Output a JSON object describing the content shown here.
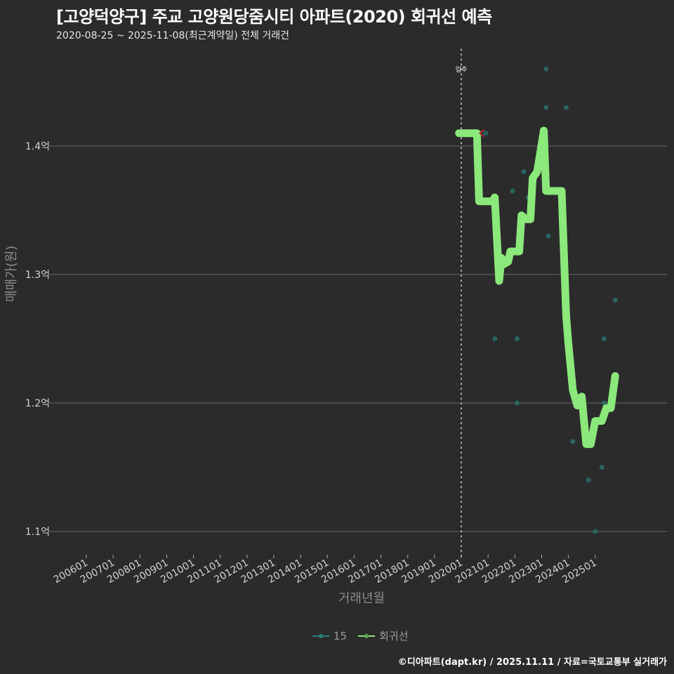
{
  "header": {
    "title": "[고양덕양구] 주교 고양원당줌시티 아파트(2020) 회귀선 예측",
    "subtitle": "2020-08-25 ~ 2025-11-08(최근계약일) 전체 거래건"
  },
  "axes": {
    "ylabel": "매매가(원)",
    "xlabel": "거래년월"
  },
  "legend": {
    "items": [
      {
        "label": "15",
        "color": "#2a7f77"
      },
      {
        "label": "회귀선",
        "color": "#8be87a"
      }
    ]
  },
  "caption": "©디아파트(dapt.kr) / 2025.11.11 / 자료=국토교통부 실거래가",
  "colors": {
    "background": "#2b2b2c",
    "grid": "#6a6a6a",
    "regression": "#8be87a",
    "scatter": "#2a6e68",
    "marker_x": "#b03030",
    "vline": "#cfcfcf"
  },
  "chart_data": {
    "type": "line",
    "title": "[고양덕양구] 주교 고양원당줌시티 아파트(2020) 회귀선 예측",
    "subtitle": "2020-08-25 ~ 2025-11-08(최근계약일) 전체 거래건",
    "xlabel": "거래년월",
    "ylabel": "매매가(원)",
    "x_tick_labels": [
      "200601",
      "200701",
      "200801",
      "200901",
      "201001",
      "201101",
      "201201",
      "201301",
      "201401",
      "201501",
      "201601",
      "201701",
      "201801",
      "201901",
      "202001",
      "202101",
      "202201",
      "202301",
      "202401",
      "202501"
    ],
    "y_tick_labels": [
      "1.1억",
      "1.2억",
      "1.3억",
      "1.4억"
    ],
    "y_tick_values": [
      1.1,
      1.2,
      1.3,
      1.4
    ],
    "ylim": [
      1.08,
      1.47
    ],
    "grid": "horizontal",
    "legend_position": "bottom",
    "annotations": [
      {
        "type": "vline",
        "x": "202001",
        "label": "입주",
        "style": "dotted"
      },
      {
        "type": "marker",
        "shape": "x",
        "x": "2020-09",
        "y": 1.41,
        "color": "#b03030"
      }
    ],
    "series": [
      {
        "name": "15",
        "type": "scatter",
        "points": [
          {
            "x": "2020-12",
            "y": 1.41
          },
          {
            "x": "2021-04",
            "y": 1.25
          },
          {
            "x": "2021-12",
            "y": 1.365
          },
          {
            "x": "2022-02",
            "y": 1.25
          },
          {
            "x": "2022-02",
            "y": 1.2
          },
          {
            "x": "2022-05",
            "y": 1.38
          },
          {
            "x": "2022-07",
            "y": 1.36
          },
          {
            "x": "2023-03",
            "y": 1.46
          },
          {
            "x": "2023-03",
            "y": 1.43
          },
          {
            "x": "2023-04",
            "y": 1.33
          },
          {
            "x": "2023-12",
            "y": 1.43
          },
          {
            "x": "2024-03",
            "y": 1.17
          },
          {
            "x": "2024-10",
            "y": 1.14
          },
          {
            "x": "2025-01",
            "y": 1.1
          },
          {
            "x": "2025-04",
            "y": 1.15
          },
          {
            "x": "2025-05",
            "y": 1.25
          },
          {
            "x": "2025-05",
            "y": 1.2
          },
          {
            "x": "2025-10",
            "y": 1.28
          }
        ]
      },
      {
        "name": "회귀선",
        "type": "line",
        "points": [
          {
            "x": "2019-12",
            "y": 1.41
          },
          {
            "x": "2020-08",
            "y": 1.41
          },
          {
            "x": "2020-09",
            "y": 1.357
          },
          {
            "x": "2021-03",
            "y": 1.357
          },
          {
            "x": "2021-04",
            "y": 1.36
          },
          {
            "x": "2021-06",
            "y": 1.295
          },
          {
            "x": "2021-07",
            "y": 1.313
          },
          {
            "x": "2021-08",
            "y": 1.308
          },
          {
            "x": "2021-10",
            "y": 1.31
          },
          {
            "x": "2021-11",
            "y": 1.318
          },
          {
            "x": "2022-03",
            "y": 1.318
          },
          {
            "x": "2022-04",
            "y": 1.346
          },
          {
            "x": "2022-06",
            "y": 1.343
          },
          {
            "x": "2022-08",
            "y": 1.343
          },
          {
            "x": "2022-09",
            "y": 1.375
          },
          {
            "x": "2022-11",
            "y": 1.38
          },
          {
            "x": "2023-02",
            "y": 1.412
          },
          {
            "x": "2023-03",
            "y": 1.365
          },
          {
            "x": "2023-10",
            "y": 1.365
          },
          {
            "x": "2023-12",
            "y": 1.268
          },
          {
            "x": "2024-01",
            "y": 1.246
          },
          {
            "x": "2024-03",
            "y": 1.21
          },
          {
            "x": "2024-05",
            "y": 1.198
          },
          {
            "x": "2024-07",
            "y": 1.205
          },
          {
            "x": "2024-09",
            "y": 1.168
          },
          {
            "x": "2024-11",
            "y": 1.168
          },
          {
            "x": "2025-01",
            "y": 1.186
          },
          {
            "x": "2025-04",
            "y": 1.186
          },
          {
            "x": "2025-06",
            "y": 1.196
          },
          {
            "x": "2025-08",
            "y": 1.196
          },
          {
            "x": "2025-10",
            "y": 1.221
          }
        ]
      }
    ]
  }
}
